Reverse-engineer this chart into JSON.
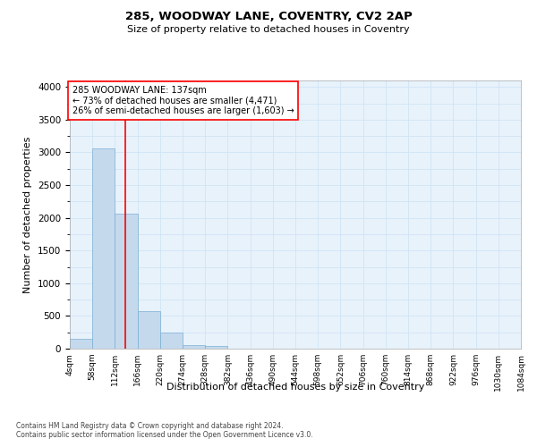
{
  "title": "285, WOODWAY LANE, COVENTRY, CV2 2AP",
  "subtitle": "Size of property relative to detached houses in Coventry",
  "xlabel": "Distribution of detached houses by size in Coventry",
  "ylabel": "Number of detached properties",
  "footnote1": "Contains HM Land Registry data © Crown copyright and database right 2024.",
  "footnote2": "Contains public sector information licensed under the Open Government Licence v3.0.",
  "annotation_line1": "285 WOODWAY LANE: 137sqm",
  "annotation_line2": "← 73% of detached houses are smaller (4,471)",
  "annotation_line3": "26% of semi-detached houses are larger (1,603) →",
  "bar_edges": [
    4,
    58,
    112,
    166,
    220,
    274,
    328,
    382,
    436,
    490,
    544,
    598,
    652,
    706,
    760,
    814,
    868,
    922,
    976,
    1030,
    1084
  ],
  "bar_heights": [
    150,
    3060,
    2060,
    570,
    240,
    60,
    35,
    0,
    0,
    0,
    0,
    0,
    0,
    0,
    0,
    0,
    0,
    0,
    0,
    0
  ],
  "bar_color": "#c5d9ed",
  "bar_edgecolor": "#7bafd4",
  "grid_color": "#d0e4f5",
  "background_color": "#e8f2fb",
  "vline_x": 137,
  "vline_color": "red",
  "ylim": [
    0,
    4100
  ],
  "yticks": [
    0,
    500,
    1000,
    1500,
    2000,
    2500,
    3000,
    3500,
    4000
  ],
  "tick_labels": [
    "4sqm",
    "58sqm",
    "112sqm",
    "166sqm",
    "220sqm",
    "274sqm",
    "328sqm",
    "382sqm",
    "436sqm",
    "490sqm",
    "544sqm",
    "598sqm",
    "652sqm",
    "706sqm",
    "760sqm",
    "814sqm",
    "868sqm",
    "922sqm",
    "976sqm",
    "1030sqm",
    "1084sqm"
  ]
}
